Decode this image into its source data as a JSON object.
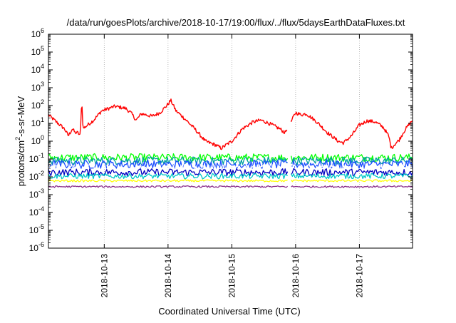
{
  "chart_data": {
    "type": "line",
    "title": "/data/run/goesPlots/archive/2018-10-17/19:00/flux/../flux/5daysEarthDataFluxes.txt",
    "xlabel": "Coordinated Universal Time (UTC)",
    "ylabel_main": "protons/cm",
    "ylabel_sup": "2",
    "ylabel_rest": "-s-sr-MeV",
    "x_axis": "date",
    "xlim": [
      "2018-10-12T03:00",
      "2018-10-17T20:00"
    ],
    "x_ticks": [
      "2018-10-13",
      "2018-10-14",
      "2018-10-15",
      "2018-10-16",
      "2018-10-17"
    ],
    "y_scale": "log",
    "ylim": [
      1e-06,
      1000000.0
    ],
    "y_ticks": [
      {
        "base": "10",
        "exp": "-6",
        "value": 1e-06
      },
      {
        "base": "10",
        "exp": "-5",
        "value": 1e-05
      },
      {
        "base": "10",
        "exp": "-4",
        "value": 0.0001
      },
      {
        "base": "10",
        "exp": "-3",
        "value": 0.001
      },
      {
        "base": "10",
        "exp": "-2",
        "value": 0.01
      },
      {
        "base": "10",
        "exp": "-1",
        "value": 0.1
      },
      {
        "base": "10",
        "exp": "0",
        "value": 1
      },
      {
        "base": "10",
        "exp": "1",
        "value": 10
      },
      {
        "base": "10",
        "exp": "2",
        "value": 100
      },
      {
        "base": "10",
        "exp": "3",
        "value": 1000
      },
      {
        "base": "10",
        "exp": "4",
        "value": 10000
      },
      {
        "base": "10",
        "exp": "5",
        "value": 100000
      },
      {
        "base": "10",
        "exp": "6",
        "value": 1000000
      }
    ],
    "grid": "dotted",
    "legend": "none",
    "series": [
      {
        "color": "#ff0000",
        "points": [
          [
            "2018-10-12T03:00",
            30
          ],
          [
            "2018-10-12T06:00",
            12
          ],
          [
            "2018-10-12T09:00",
            5
          ],
          [
            "2018-10-12T10:30",
            2
          ],
          [
            "2018-10-12T12:00",
            5
          ],
          [
            "2018-10-12T13:00",
            3
          ],
          [
            "2018-10-12T14:00",
            3
          ],
          [
            "2018-10-12T15:00",
            2
          ],
          [
            "2018-10-12T15:30",
            250
          ],
          [
            "2018-10-12T16:00",
            5
          ],
          [
            "2018-10-12T20:00",
            15
          ],
          [
            "2018-10-12T23:00",
            50
          ],
          [
            "2018-10-13T04:00",
            90
          ],
          [
            "2018-10-13T08:00",
            70
          ],
          [
            "2018-10-13T10:00",
            40
          ],
          [
            "2018-10-13T12:00",
            15
          ],
          [
            "2018-10-13T14:00",
            35
          ],
          [
            "2018-10-13T18:00",
            25
          ],
          [
            "2018-10-13T21:00",
            40
          ],
          [
            "2018-10-14T00:00",
            120
          ],
          [
            "2018-10-14T01:00",
            200
          ],
          [
            "2018-10-14T03:00",
            50
          ],
          [
            "2018-10-14T06:00",
            20
          ],
          [
            "2018-10-14T10:00",
            5
          ],
          [
            "2018-10-14T14:00",
            1
          ],
          [
            "2018-10-14T18:00",
            0.6
          ],
          [
            "2018-10-14T20:00",
            0.4
          ],
          [
            "2018-10-15T00:00",
            1
          ],
          [
            "2018-10-15T04:00",
            5
          ],
          [
            "2018-10-15T08:00",
            12
          ],
          [
            "2018-10-15T11:00",
            15
          ],
          [
            "2018-10-15T14:00",
            10
          ],
          [
            "2018-10-15T18:00",
            5
          ],
          [
            "2018-10-15T20:00",
            3
          ],
          [
            "2018-10-15T22:00",
            10
          ],
          [
            "2018-10-16T00:00",
            40
          ],
          [
            "2018-10-16T02:00",
            30
          ],
          [
            "2018-10-16T04:00",
            35
          ],
          [
            "2018-10-16T08:00",
            12
          ],
          [
            "2018-10-16T12:00",
            3
          ],
          [
            "2018-10-16T16:00",
            1
          ],
          [
            "2018-10-16T18:00",
            0.8
          ],
          [
            "2018-10-16T21:00",
            2
          ],
          [
            "2018-10-17T00:00",
            8
          ],
          [
            "2018-10-17T03:00",
            14
          ],
          [
            "2018-10-17T06:00",
            12
          ],
          [
            "2018-10-17T09:00",
            6
          ],
          [
            "2018-10-17T11:00",
            2
          ],
          [
            "2018-10-17T12:00",
            0.4
          ],
          [
            "2018-10-17T13:00",
            0.6
          ],
          [
            "2018-10-17T15:00",
            1.2
          ],
          [
            "2018-10-17T17:00",
            4
          ],
          [
            "2018-10-17T19:00",
            10
          ],
          [
            "2018-10-17T20:00",
            15
          ]
        ]
      },
      {
        "color": "#00ff00",
        "points": [
          [
            "2018-10-12T03:00",
            0.12
          ],
          [
            "2018-10-17T20:00",
            0.12
          ]
        ]
      },
      {
        "color": "#00a0a0",
        "points": [
          [
            "2018-10-12T03:00",
            0.08
          ],
          [
            "2018-10-17T20:00",
            0.08
          ]
        ]
      },
      {
        "color": "#1e50ff",
        "points": [
          [
            "2018-10-12T03:00",
            0.05
          ],
          [
            "2018-10-17T20:00",
            0.05
          ]
        ]
      },
      {
        "color": "#ffffff",
        "points": [
          [
            "2018-10-12T03:00",
            0.03
          ],
          [
            "2018-10-17T20:00",
            0.03
          ]
        ]
      },
      {
        "color": "#0000c0",
        "points": [
          [
            "2018-10-12T03:00",
            0.018
          ],
          [
            "2018-10-17T20:00",
            0.018
          ]
        ]
      },
      {
        "color": "#00c8c8",
        "points": [
          [
            "2018-10-12T03:00",
            0.011
          ],
          [
            "2018-10-17T20:00",
            0.011
          ]
        ]
      },
      {
        "color": "#ffff00",
        "points": [
          [
            "2018-10-12T03:00",
            0.006
          ],
          [
            "2018-10-17T20:00",
            0.006
          ]
        ]
      },
      {
        "color": "#8b2e8b",
        "points": [
          [
            "2018-10-12T03:00",
            0.0028
          ],
          [
            "2018-10-17T20:00",
            0.0028
          ]
        ]
      }
    ]
  }
}
